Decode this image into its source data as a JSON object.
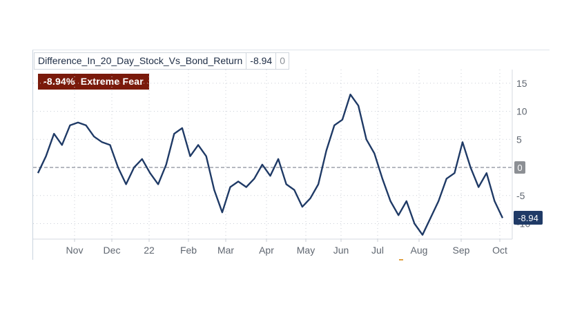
{
  "legend": {
    "series_name": "Difference_In_20_Day_Stock_Vs_Bond_Return",
    "last_value": "-8.94",
    "extra_value": "0"
  },
  "badge": {
    "value": "-8.94%",
    "label": "Extreme Fear",
    "color": "#7a1a0b"
  },
  "chart_data": {
    "type": "line",
    "x_tick_labels": [
      "Nov",
      "Dec",
      "22",
      "Feb",
      "Mar",
      "Apr",
      "May",
      "Jun",
      "Jul",
      "Aug",
      "Sep",
      "Oct"
    ],
    "y_ticks": [
      15,
      10,
      5,
      0,
      -5,
      -10
    ],
    "ylim": [
      -12.5,
      17.5
    ],
    "zero_line_label": "0",
    "last_value_label": "-8.94",
    "line_color": "#1f3a66",
    "grid": "dotted",
    "series": [
      {
        "x": [
          0,
          6,
          12,
          18,
          24,
          30,
          36,
          42,
          48,
          54,
          60,
          66,
          72,
          78,
          84,
          90,
          96,
          102,
          108,
          114,
          120,
          126,
          132,
          138,
          144,
          150,
          156,
          162,
          168,
          174,
          180,
          186,
          192,
          198,
          204,
          210,
          216,
          222,
          228,
          234,
          240,
          246,
          252,
          258,
          264,
          270,
          276,
          282,
          288,
          294,
          300,
          306,
          312,
          318,
          324,
          330,
          336,
          342,
          348
        ],
        "values": [
          -1.0,
          2.0,
          6.0,
          4.0,
          7.5,
          8.0,
          7.5,
          5.5,
          4.5,
          4.0,
          0.0,
          -3.0,
          0.0,
          1.5,
          -1.0,
          -3.0,
          0.5,
          6.0,
          7.0,
          2.0,
          4.0,
          2.0,
          -4.0,
          -8.0,
          -3.5,
          -2.5,
          -3.5,
          -2.0,
          0.5,
          -1.5,
          1.5,
          -3.0,
          -4.0,
          -7.0,
          -5.5,
          -3.0,
          3.0,
          7.5,
          8.5,
          13.0,
          11.0,
          5.0,
          2.5,
          -2.0,
          -6.0,
          -8.5,
          -6.0,
          -10.0,
          -12.0,
          -9.0,
          -6.0,
          -2.0,
          -1.0,
          4.5,
          0.0,
          -3.5,
          -1.0,
          -6.0,
          -9.0
        ]
      }
    ]
  }
}
